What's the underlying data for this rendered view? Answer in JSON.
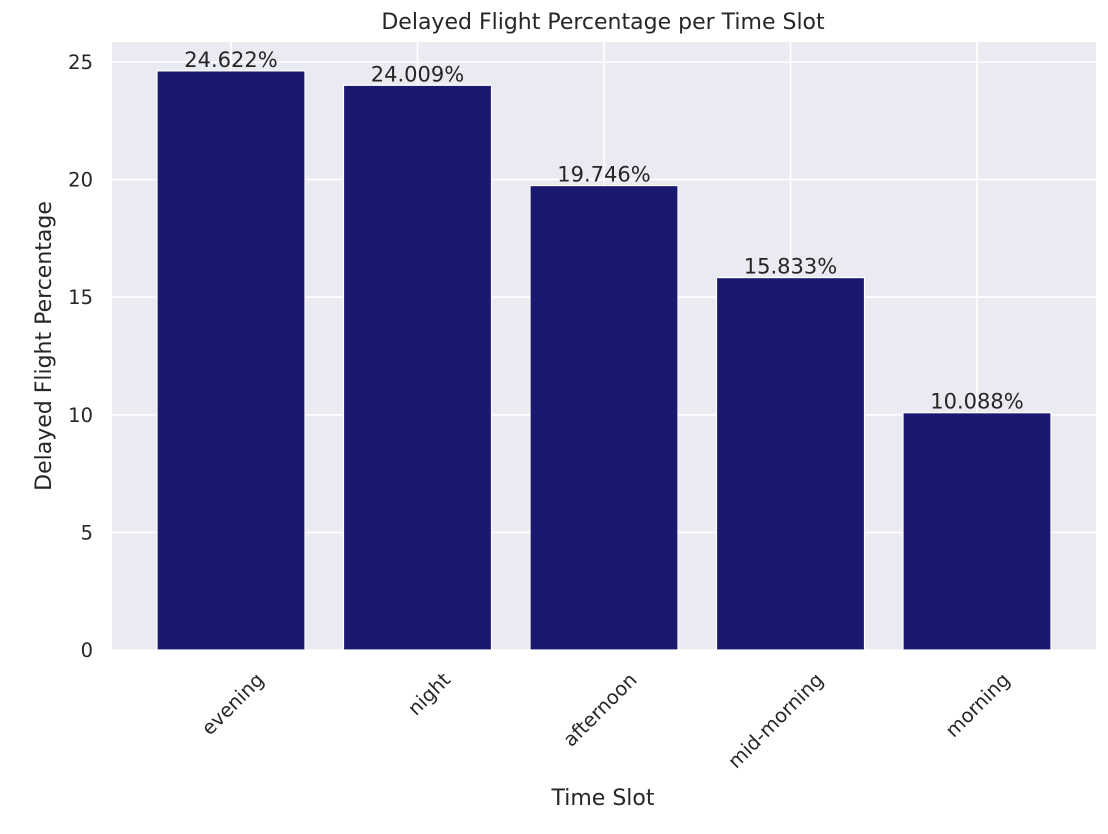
{
  "chart_data": {
    "type": "bar",
    "title": "Delayed Flight Percentage per Time Slot",
    "xlabel": "Time Slot",
    "ylabel": "Delayed Flight Percentage",
    "categories": [
      "evening",
      "night",
      "afternoon",
      "mid-morning",
      "morning"
    ],
    "values": [
      24.622,
      24.009,
      19.746,
      15.833,
      10.088
    ],
    "data_labels": [
      "24.622%",
      "24.009%",
      "19.746%",
      "15.833%",
      "10.088%"
    ],
    "ylim": [
      0,
      25.85
    ],
    "yticks": [
      0,
      5,
      10,
      15,
      20,
      25
    ],
    "ytick_labels": [
      "0",
      "5",
      "10",
      "15",
      "20",
      "25"
    ],
    "grid": true,
    "bar_color": "#191970",
    "background_color": "#eaeaf2",
    "x_tick_rotation_deg": 45
  }
}
